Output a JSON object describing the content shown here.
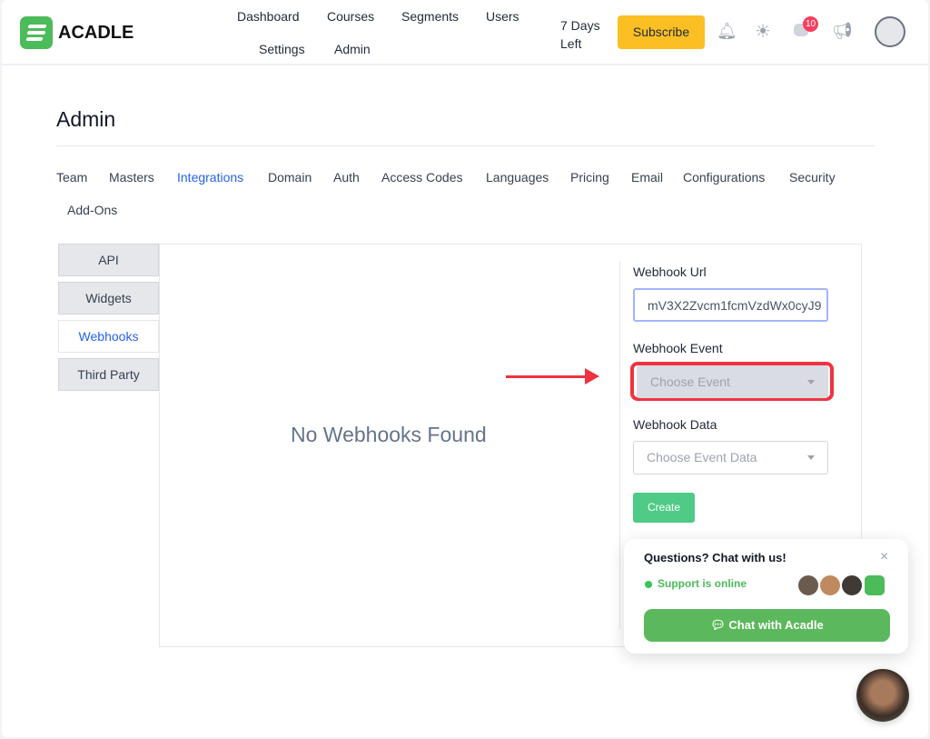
{
  "header": {
    "brand": "ACADLE",
    "nav": [
      "Dashboard",
      "Courses",
      "Segments",
      "Users",
      "Settings",
      "Admin"
    ],
    "trial": [
      "7 Days",
      "Left"
    ],
    "subscribe": "Subscribe",
    "notification_count": "10"
  },
  "page": {
    "title": "Admin",
    "tabs": [
      "Team",
      "Masters",
      "Integrations",
      "Domain",
      "Auth",
      "Access Codes",
      "Languages",
      "Pricing",
      "Email",
      "Configurations",
      "Security",
      "Add-Ons"
    ],
    "active_tab": "Integrations"
  },
  "sidebar": {
    "items": [
      "API",
      "Widgets",
      "Webhooks",
      "Third Party"
    ],
    "active": "Webhooks"
  },
  "main": {
    "empty": "No Webhooks Found"
  },
  "form": {
    "url_label": "Webhook Url",
    "url_value": "mV3X2Zvcm1fcmVzdWx0cyJ9",
    "event_label": "Webhook Event",
    "event_placeholder": "Choose Event",
    "data_label": "Webhook Data",
    "data_placeholder": "Choose Event Data",
    "create": "Create"
  },
  "chat": {
    "title": "Questions? Chat with us!",
    "status": "Support is online",
    "button": "Chat with Acadle",
    "close": "×"
  },
  "colors": {
    "accent": "#2563eb",
    "brand": "#4cbb5a",
    "highlight": "#ef3340",
    "subscribe": "#fbbf24"
  }
}
